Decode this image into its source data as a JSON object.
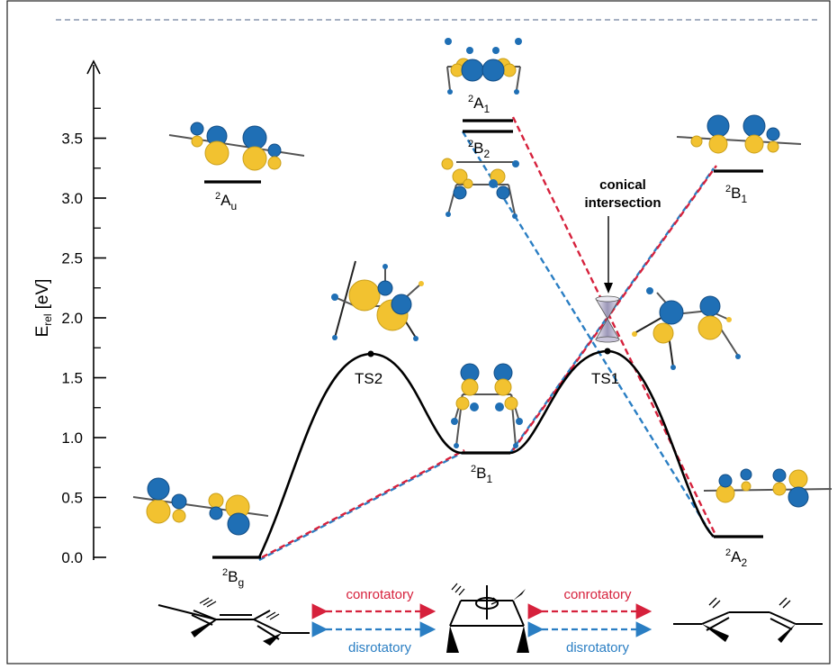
{
  "axis": {
    "label_main": "E",
    "label_sub": "rel",
    "label_unit": "[eV]",
    "ticks": [
      "0.0",
      "0.5",
      "1.0",
      "1.5",
      "2.0",
      "2.5",
      "3.0",
      "3.5"
    ],
    "tick_values": [
      0.0,
      0.5,
      1.0,
      1.5,
      2.0,
      2.5,
      3.0,
      3.5
    ]
  },
  "states": {
    "Bg": {
      "sup": "2",
      "main": "B",
      "sub": "g"
    },
    "Au": {
      "sup": "2",
      "main": "A",
      "sub": "u"
    },
    "A1": {
      "sup": "2",
      "main": "A",
      "sub": "1"
    },
    "B2": {
      "sup": "2",
      "main": "B",
      "sub": "2"
    },
    "B1c": {
      "sup": "2",
      "main": "B",
      "sub": "1"
    },
    "B1r": {
      "sup": "2",
      "main": "B",
      "sub": "1"
    },
    "A2": {
      "sup": "2",
      "main": "A",
      "sub": "2"
    }
  },
  "energies": {
    "Bg": 0.0,
    "Au": 3.3,
    "TS2": 1.7,
    "B1c": 0.87,
    "A1": 3.67,
    "B2": 3.57,
    "TS1": 1.72,
    "B1r": 3.23,
    "A2": 0.16
  },
  "labels": {
    "ts2": "TS2",
    "ts1": "TS1",
    "ci_line1": "conical",
    "ci_line2": "intersection"
  },
  "legend": {
    "con_left": "conrotatory",
    "dis_left": "disrotatory",
    "con_right": "conrotatory",
    "dis_right": "disrotatory"
  },
  "colors": {
    "conrotatory": "#d6213c",
    "disrotatory": "#2a7ec3",
    "orbital_blue": "#1f6fb5",
    "orbital_yellow": "#f2c230",
    "curve": "#000000",
    "border_dash": "#8795ae"
  }
}
